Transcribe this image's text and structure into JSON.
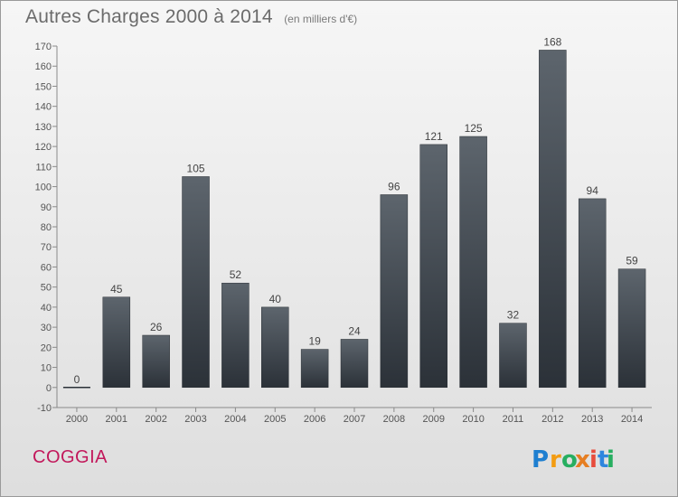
{
  "title": "Autres Charges 2000 à 2014",
  "subtitle": "(en milliers d'€)",
  "commune": "COGGIA",
  "brand": {
    "letters": [
      "P",
      "r",
      "o",
      "x",
      "i",
      "t",
      "i"
    ],
    "colors": [
      "#1e7fd0",
      "#f39c12",
      "#27ae60",
      "#e67e22",
      "#e74c3c",
      "#2e86de",
      "#27ae60"
    ]
  },
  "chart_data": {
    "type": "bar",
    "categories": [
      "2000",
      "2001",
      "2002",
      "2003",
      "2004",
      "2005",
      "2006",
      "2007",
      "2008",
      "2009",
      "2010",
      "2011",
      "2012",
      "2013",
      "2014"
    ],
    "values": [
      0,
      45,
      26,
      105,
      52,
      40,
      19,
      24,
      96,
      121,
      125,
      32,
      168,
      94,
      59
    ],
    "data_labels": [
      "0",
      "45",
      "26",
      "105",
      "52",
      "40",
      "19",
      "24",
      "96",
      "121",
      "125",
      "32",
      "168",
      "94",
      "59"
    ],
    "yticks": [
      -10,
      0,
      10,
      20,
      30,
      40,
      50,
      60,
      70,
      80,
      90,
      100,
      110,
      120,
      130,
      140,
      150,
      160,
      170
    ],
    "ylim": [
      -10,
      170
    ],
    "grid": false,
    "bar_color": "#4a5158",
    "title": "Autres Charges 2000 à 2014",
    "xlabel": "",
    "ylabel": ""
  }
}
